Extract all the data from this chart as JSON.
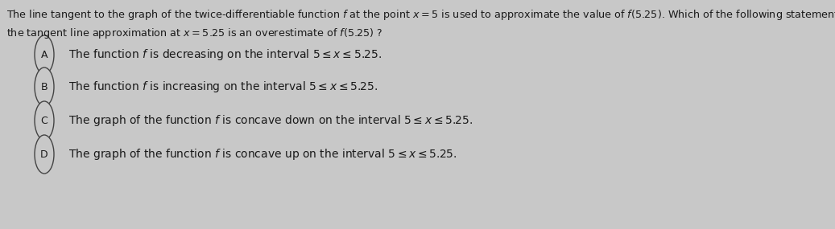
{
  "background_color": "#c8c8c8",
  "title_line1": "The line tangent to the graph of the twice-differentiable function $f$ at the point $x = 5$ is used to approximate the value of $f(5.25)$. Which of the following statements guarantees that",
  "title_line2": "the tangent line approximation at $x = 5.25$ is an overestimate of $f(5.25)$ ?",
  "options": [
    {
      "label": "A",
      "text": "The function $f$ is decreasing on the interval $5 \\leq x \\leq 5.25$."
    },
    {
      "label": "B",
      "text": "The function $f$ is increasing on the interval $5 \\leq x \\leq 5.25$."
    },
    {
      "label": "C",
      "text": "The graph of the function $f$ is concave down on the interval $5 \\leq x \\leq 5.25$."
    },
    {
      "label": "D",
      "text": "The graph of the function $f$ is concave up on the interval $5 \\leq x \\leq 5.25$."
    }
  ],
  "text_color": "#1a1a1a",
  "circle_edge_color": "#444444",
  "circle_face_color": "#c8c8c8",
  "font_size_title": 9.2,
  "font_size_options": 10.0,
  "font_size_label": 9.0,
  "fig_width": 10.37,
  "fig_height": 2.85,
  "dpi": 100
}
